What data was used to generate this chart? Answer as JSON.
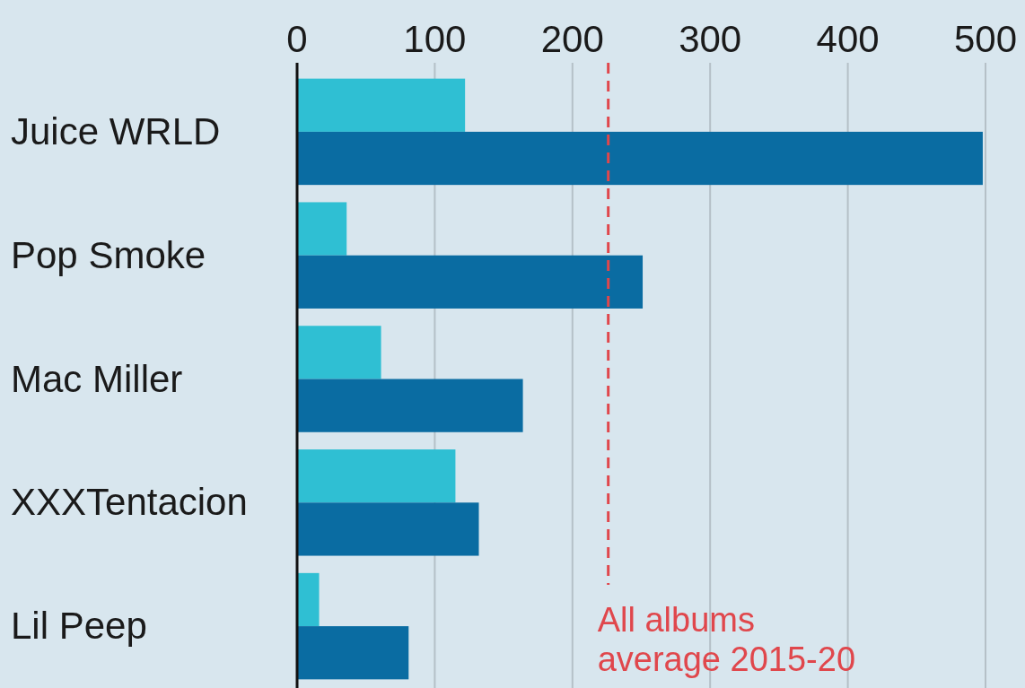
{
  "chart_data": {
    "type": "bar",
    "orientation": "horizontal",
    "categories": [
      "Juice WRLD",
      "Pop Smoke",
      "Mac Miller",
      "XXXTentacion",
      "Lil Peep"
    ],
    "series": [
      {
        "color": "#2fbfd3",
        "values": [
          122,
          36,
          61,
          115,
          16
        ]
      },
      {
        "color": "#0a6ca2",
        "values": [
          498,
          251,
          164,
          132,
          81
        ]
      }
    ],
    "xlim": [
      0,
      500
    ],
    "xticks": [
      0,
      100,
      200,
      300,
      400,
      500
    ],
    "grid": "x",
    "ref_lines": [
      {
        "axis": "x",
        "value": 226,
        "label": "All albums average 2015-20",
        "color": "#e0474c",
        "line_style": "dashed"
      }
    ]
  }
}
